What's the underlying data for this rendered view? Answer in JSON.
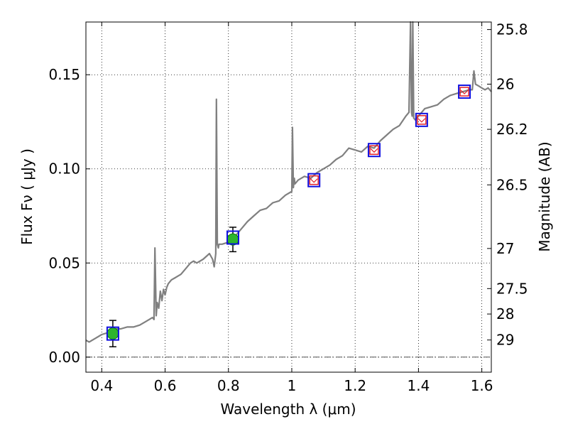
{
  "chart_data": {
    "type": "line",
    "xlabel": "Wavelength  λ (μm)",
    "ylabel": "Flux  Fν  ( μJy )",
    "y2label": "Magnitude (AB)",
    "xlim": [
      0.35,
      1.63
    ],
    "ylim": [
      -0.008,
      0.178
    ],
    "grid": true,
    "x_ticks": [
      0.4,
      0.6,
      0.8,
      1.0,
      1.2,
      1.4,
      1.6
    ],
    "x_tick_labels": [
      "0.4",
      "0.6",
      "0.8",
      "1",
      "1.2",
      "1.4",
      "1.6"
    ],
    "y_ticks": [
      0.0,
      0.05,
      0.1,
      0.15
    ],
    "y_tick_labels": [
      "0.00",
      "0.05",
      "0.10",
      "0.15"
    ],
    "mag_ticks": [
      {
        "label": "25.8",
        "flux": 0.174
      },
      {
        "label": "26",
        "flux": 0.145
      },
      {
        "label": "26.2",
        "flux": 0.121
      },
      {
        "label": "26.5",
        "flux": 0.0915
      },
      {
        "label": "27",
        "flux": 0.0577
      },
      {
        "label": "27.5",
        "flux": 0.0364
      },
      {
        "label": "28",
        "flux": 0.0229
      },
      {
        "label": "29",
        "flux": 0.0091
      }
    ],
    "series": [
      {
        "role": "model-spectrum",
        "color": "#808080",
        "x": [
          0.35,
          0.36,
          0.38,
          0.4,
          0.42,
          0.44,
          0.46,
          0.48,
          0.5,
          0.52,
          0.54,
          0.55,
          0.56,
          0.565,
          0.568,
          0.572,
          0.575,
          0.58,
          0.585,
          0.59,
          0.595,
          0.6,
          0.605,
          0.61,
          0.62,
          0.63,
          0.64,
          0.65,
          0.66,
          0.67,
          0.68,
          0.69,
          0.7,
          0.72,
          0.74,
          0.75,
          0.755,
          0.76,
          0.762,
          0.765,
          0.768,
          0.77,
          0.78,
          0.8,
          0.82,
          0.84,
          0.86,
          0.88,
          0.9,
          0.92,
          0.94,
          0.96,
          0.98,
          1.0,
          1.002,
          1.005,
          1.008,
          1.01,
          1.02,
          1.04,
          1.06,
          1.08,
          1.1,
          1.12,
          1.14,
          1.16,
          1.18,
          1.2,
          1.22,
          1.24,
          1.26,
          1.28,
          1.3,
          1.32,
          1.34,
          1.36,
          1.37,
          1.375,
          1.378,
          1.38,
          1.382,
          1.385,
          1.39,
          1.4,
          1.42,
          1.44,
          1.46,
          1.48,
          1.5,
          1.52,
          1.54,
          1.56,
          1.57,
          1.575,
          1.58,
          1.59,
          1.6,
          1.61,
          1.62,
          1.63
        ],
        "y": [
          0.009,
          0.008,
          0.01,
          0.012,
          0.013,
          0.015,
          0.015,
          0.016,
          0.016,
          0.017,
          0.019,
          0.02,
          0.021,
          0.02,
          0.058,
          0.022,
          0.029,
          0.026,
          0.035,
          0.03,
          0.036,
          0.033,
          0.037,
          0.039,
          0.041,
          0.042,
          0.043,
          0.044,
          0.046,
          0.048,
          0.05,
          0.051,
          0.05,
          0.052,
          0.055,
          0.052,
          0.048,
          0.055,
          0.137,
          0.06,
          0.058,
          0.06,
          0.06,
          0.061,
          0.064,
          0.068,
          0.072,
          0.075,
          0.078,
          0.079,
          0.082,
          0.083,
          0.086,
          0.088,
          0.122,
          0.09,
          0.095,
          0.092,
          0.094,
          0.096,
          0.095,
          0.098,
          0.1,
          0.102,
          0.105,
          0.107,
          0.111,
          0.11,
          0.109,
          0.112,
          0.111,
          0.115,
          0.118,
          0.121,
          0.123,
          0.128,
          0.13,
          0.178,
          0.13,
          0.128,
          0.178,
          0.127,
          0.126,
          0.128,
          0.132,
          0.133,
          0.134,
          0.137,
          0.139,
          0.14,
          0.141,
          0.142,
          0.142,
          0.152,
          0.145,
          0.144,
          0.143,
          0.142,
          0.143,
          0.141
        ]
      }
    ],
    "photometry_green": [
      {
        "x": 0.435,
        "y": 0.0125,
        "yerr": 0.007
      },
      {
        "x": 0.814,
        "y": 0.0625,
        "yerr": 0.0065
      }
    ],
    "model_boxes": [
      {
        "x": 0.435,
        "y": 0.0125
      },
      {
        "x": 0.814,
        "y": 0.0635
      },
      {
        "x": 1.07,
        "y": 0.094
      },
      {
        "x": 1.26,
        "y": 0.11
      },
      {
        "x": 1.41,
        "y": 0.126
      },
      {
        "x": 1.545,
        "y": 0.141
      }
    ],
    "upper_limit_markers": [
      {
        "x": 1.07,
        "y": 0.094
      },
      {
        "x": 1.26,
        "y": 0.11
      },
      {
        "x": 1.41,
        "y": 0.126
      },
      {
        "x": 1.545,
        "y": 0.141
      }
    ],
    "zero_line": {
      "y": 0.0,
      "style": "dash-dot"
    }
  }
}
